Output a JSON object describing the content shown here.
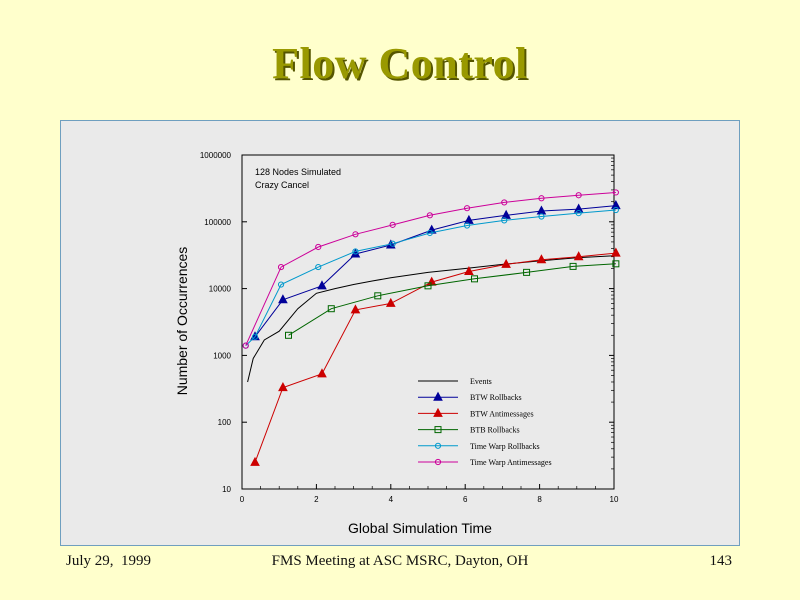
{
  "slide": {
    "title": "Flow Control",
    "footer_left": "July 29,  1999",
    "footer_center": "FMS Meeting at ASC MSRC, Dayton, OH",
    "footer_right": "143"
  },
  "chart_data": {
    "type": "line",
    "xlabel": "Global Simulation Time",
    "ylabel": "Number of Occurrences",
    "xlim": [
      0,
      10
    ],
    "ylim": [
      10,
      1000000
    ],
    "yscale": "log",
    "xticks": [
      0,
      2,
      4,
      6,
      8,
      10
    ],
    "yticks": [
      10,
      100,
      1000,
      10000,
      100000,
      1000000
    ],
    "ytick_labels": [
      "10",
      "100",
      "1000",
      "10000",
      "100000",
      "1000000"
    ],
    "annotations": [
      "128 Nodes Simulated",
      "Crazy Cancel"
    ],
    "grid": false,
    "legend_position": "lower-right",
    "series": [
      {
        "name": "Events",
        "color": "#000000",
        "marker": "none",
        "x": [
          0.15,
          0.3,
          0.6,
          1.0,
          1.5,
          2.0,
          2.5,
          3.0,
          3.5,
          4.0,
          5.0,
          6.0,
          7.0,
          8.0,
          9.0,
          10.0
        ],
        "y": [
          400,
          900,
          1700,
          2300,
          5000,
          8500,
          10000,
          11500,
          13000,
          14500,
          17500,
          20000,
          23000,
          26000,
          29000,
          31000
        ]
      },
      {
        "name": "BTW Rollbacks",
        "color": "#000099",
        "marker": "triangle",
        "x": [
          0.35,
          1.1,
          2.15,
          3.05,
          4.0,
          5.1,
          6.1,
          7.1,
          8.05,
          9.05,
          10.05
        ],
        "y": [
          1900,
          6800,
          11000,
          33000,
          45000,
          75000,
          105000,
          125000,
          145000,
          155000,
          175000
        ]
      },
      {
        "name": "BTW Antimessages",
        "color": "#cc0000",
        "marker": "triangle",
        "x": [
          0.35,
          1.1,
          2.15,
          3.05,
          4.0,
          5.1,
          6.1,
          7.1,
          8.05,
          9.05,
          10.05
        ],
        "y": [
          25,
          330,
          530,
          4800,
          6000,
          12500,
          18000,
          23000,
          27000,
          30000,
          34000
        ]
      },
      {
        "name": "BTB Rollbacks",
        "color": "#006600",
        "marker": "square",
        "x": [
          1.25,
          2.4,
          3.65,
          5.0,
          6.25,
          7.65,
          8.9,
          10.05
        ],
        "y": [
          2000,
          5000,
          7800,
          11000,
          14000,
          17500,
          21500,
          23500
        ]
      },
      {
        "name": "Time Warp Rollbacks",
        "color": "#0099cc",
        "marker": "circle",
        "x": [
          0.1,
          0.35,
          1.05,
          2.05,
          3.05,
          4.05,
          5.05,
          6.05,
          7.05,
          8.05,
          9.05,
          10.05
        ],
        "y": [
          1400,
          1900,
          11500,
          21000,
          36000,
          47000,
          68000,
          88000,
          105000,
          120000,
          135000,
          150000
        ]
      },
      {
        "name": "Time Warp Antimessages",
        "color": "#cc0099",
        "marker": "circle",
        "x": [
          0.1,
          1.05,
          2.05,
          3.05,
          4.05,
          5.05,
          6.05,
          7.05,
          8.05,
          9.05,
          10.05
        ],
        "y": [
          1400,
          21000,
          42000,
          65000,
          90000,
          125000,
          160000,
          195000,
          225000,
          250000,
          275000
        ]
      }
    ]
  }
}
